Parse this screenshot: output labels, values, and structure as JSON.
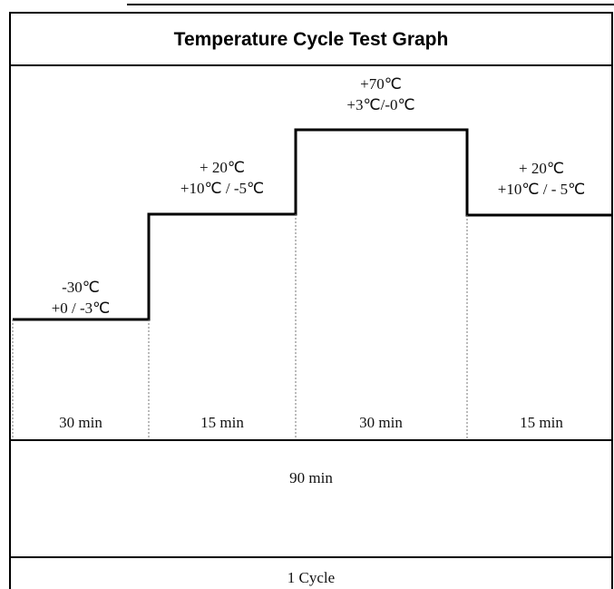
{
  "title": "Temperature Cycle Test Graph",
  "stages": [
    {
      "temperature": "-30℃",
      "tolerance": "+0 / -3℃",
      "duration": "30 min"
    },
    {
      "temperature": "+ 20℃",
      "tolerance": "+10℃ / -5℃",
      "duration": "15 min"
    },
    {
      "temperature": "+70℃",
      "tolerance": "+3℃/-0℃",
      "duration": "30 min"
    },
    {
      "temperature": "+ 20℃",
      "tolerance": "+10℃ / - 5℃",
      "duration": "15 min"
    }
  ],
  "total": "90 min",
  "cycle": "1 Cycle"
}
